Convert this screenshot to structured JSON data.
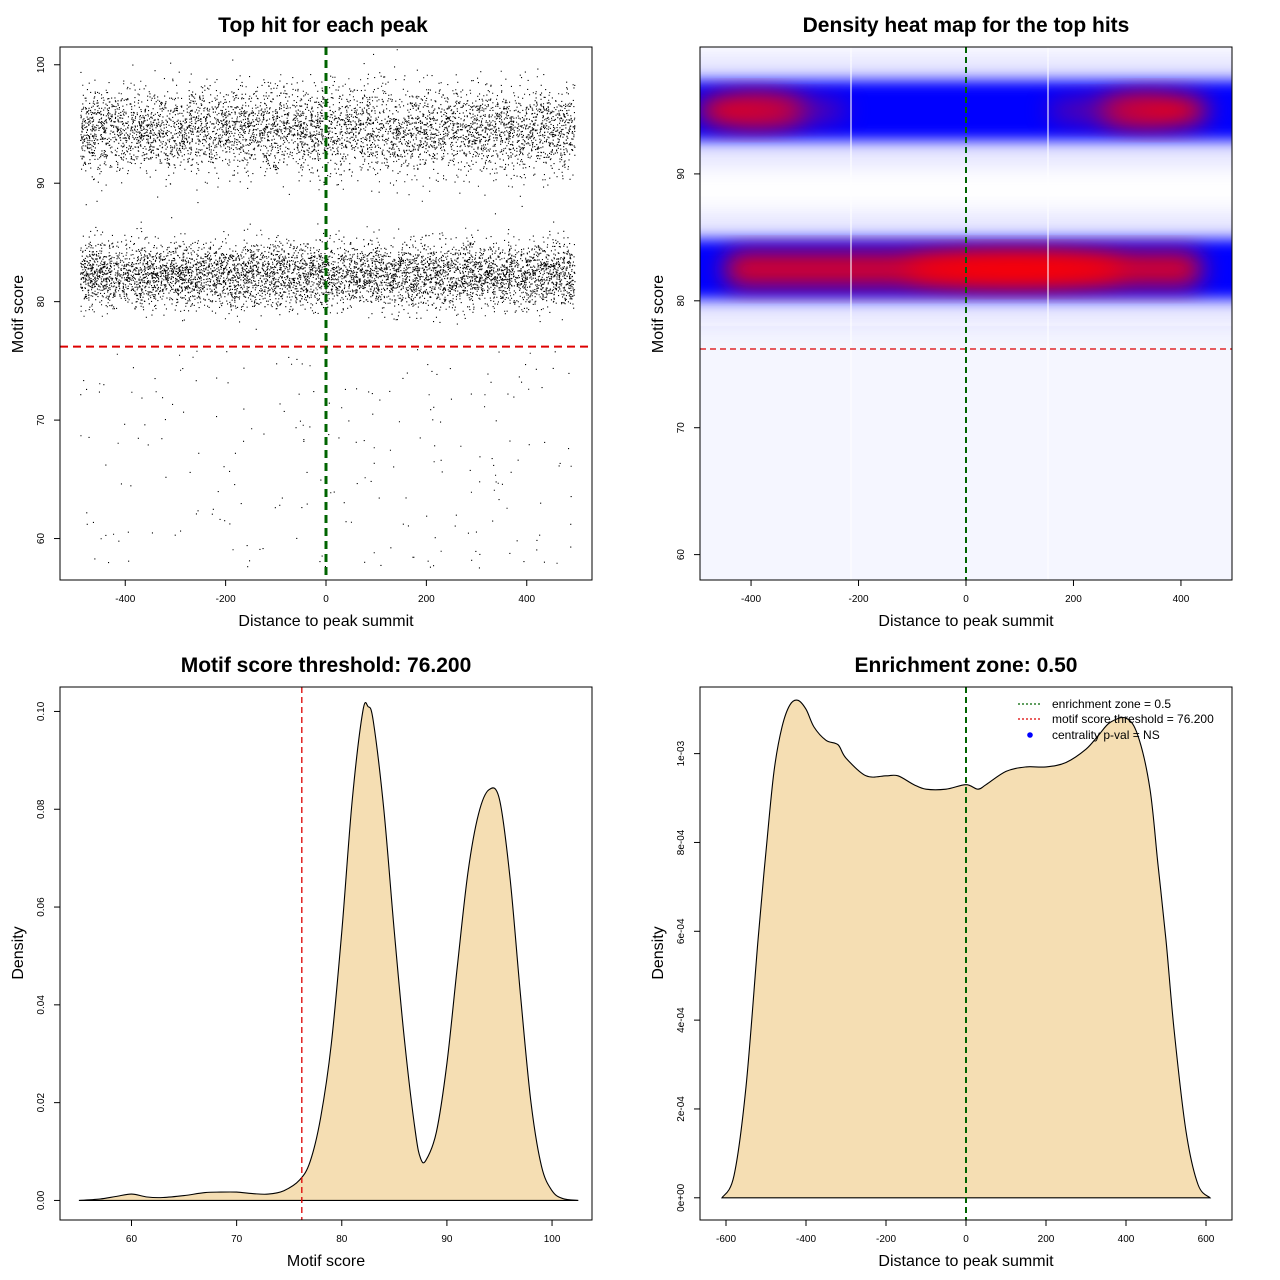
{
  "chart_data": [
    {
      "id": "scatter",
      "type": "scatter",
      "title": "Top hit for each peak",
      "xlabel": "Distance to peak summit",
      "ylabel": "Motif score",
      "xlim": [
        -530,
        530
      ],
      "ylim": [
        56.5,
        101.5
      ],
      "xticks": [
        -400,
        -200,
        0,
        200,
        400
      ],
      "yticks": [
        60,
        70,
        80,
        90,
        100
      ],
      "xtick_labels": [
        "-400",
        "-200",
        "0",
        "200",
        "400"
      ],
      "ytick_labels": [
        "60",
        "70",
        "80",
        "90",
        "100"
      ],
      "vline": {
        "x": 0,
        "color": "#006400",
        "style": "dashed"
      },
      "hline": {
        "y": 76.2,
        "color": "#dd0000",
        "style": "dashed"
      },
      "point_color": "#000000",
      "clusters": [
        {
          "y_center": 94.5,
          "y_spread": 2.4,
          "x_range": [
            -490,
            495
          ],
          "approx_points": 5200
        },
        {
          "y_center": 82.3,
          "y_spread": 1.8,
          "x_range": [
            -490,
            495
          ],
          "approx_points": 6000
        },
        {
          "y_range": [
            57.5,
            76
          ],
          "x_range": [
            -490,
            495
          ],
          "approx_points": 230
        }
      ],
      "grid": false
    },
    {
      "id": "heatmap",
      "type": "heatmap",
      "title": "Density heat map for the top hits",
      "xlabel": "Distance to peak summit",
      "ylabel": "Motif score",
      "xlim": [
        -495,
        495
      ],
      "ylim": [
        58,
        100
      ],
      "xticks": [
        -400,
        -200,
        0,
        200,
        400
      ],
      "yticks": [
        60,
        70,
        80,
        90
      ],
      "xtick_labels": [
        "-400",
        "-200",
        "0",
        "200",
        "400"
      ],
      "ytick_labels": [
        "60",
        "70",
        "80",
        "90"
      ],
      "vline": {
        "x": 0,
        "color": "#006400",
        "style": "dashed"
      },
      "hline": {
        "y": 76.2,
        "color": "#dd0000",
        "style": "dashed"
      },
      "band_peaks": [
        {
          "y": 95,
          "x_high_density": [
            -400,
            350
          ]
        },
        {
          "y": 82.5,
          "x_high_density": [
            0,
            200
          ]
        }
      ],
      "palette": [
        "#ffffff",
        "#0000ff",
        "#ff0000"
      ],
      "grid": false
    },
    {
      "id": "score_density",
      "type": "area",
      "title": "Motif score threshold: 76.200",
      "xlabel": "Motif score",
      "ylabel": "Density",
      "xlim": [
        53.2,
        103.8
      ],
      "ylim": [
        -0.004,
        0.105
      ],
      "xticks": [
        60,
        70,
        80,
        90,
        100
      ],
      "yticks": [
        0,
        0.02,
        0.04,
        0.06,
        0.08,
        0.1
      ],
      "xtick_labels": [
        "60",
        "70",
        "80",
        "90",
        "100"
      ],
      "ytick_labels": [
        "0.00",
        "0.02",
        "0.04",
        "0.06",
        "0.08",
        "0.10"
      ],
      "x": [
        55,
        57,
        58.5,
        60,
        61.5,
        63,
        65,
        67,
        68.5,
        70,
        71.5,
        73,
        74.5,
        76,
        77,
        78,
        79,
        80,
        81,
        82,
        82.5,
        83,
        84,
        85,
        86,
        87,
        87.5,
        88,
        89,
        90,
        91,
        92,
        93,
        94,
        95,
        96,
        97,
        98,
        99,
        100,
        101,
        102.5
      ],
      "y": [
        0.0,
        0.0003,
        0.0008,
        0.0013,
        0.0007,
        0.0006,
        0.001,
        0.0016,
        0.0017,
        0.0017,
        0.0014,
        0.0013,
        0.002,
        0.0042,
        0.008,
        0.017,
        0.032,
        0.055,
        0.082,
        0.1,
        0.101,
        0.098,
        0.08,
        0.055,
        0.032,
        0.014,
        0.0086,
        0.0082,
        0.014,
        0.028,
        0.048,
        0.067,
        0.079,
        0.084,
        0.082,
        0.066,
        0.042,
        0.02,
        0.007,
        0.002,
        0.0004,
        0.0
      ],
      "fill_color": "#f5deb3",
      "vline": {
        "x": 76.2,
        "color": "#dd0000",
        "style": "dashed"
      },
      "grid": false
    },
    {
      "id": "distance_density",
      "type": "area",
      "title": "Enrichment zone: 0.50",
      "xlabel": "Distance to peak summit",
      "ylabel": "Density",
      "xlim": [
        -665,
        665
      ],
      "ylim": [
        -5e-05,
        0.00115
      ],
      "xticks": [
        -600,
        -400,
        -200,
        0,
        200,
        400,
        600
      ],
      "yticks": [
        0,
        0.0002,
        0.0004,
        0.0006,
        0.0008,
        0.001
      ],
      "xtick_labels": [
        "-600",
        "-400",
        "-200",
        "0",
        "200",
        "400",
        "600"
      ],
      "ytick_labels": [
        "0e+00",
        "2e-04",
        "4e-04",
        "6e-04",
        "8e-04",
        "1e-03"
      ],
      "x": [
        -610,
        -580,
        -550,
        -520,
        -500,
        -480,
        -460,
        -440,
        -420,
        -400,
        -380,
        -350,
        -320,
        -300,
        -250,
        -200,
        -170,
        -130,
        -100,
        -50,
        0,
        30,
        50,
        100,
        150,
        200,
        250,
        300,
        330,
        360,
        400,
        430,
        460,
        480,
        500,
        520,
        550,
        580,
        610
      ],
      "y": [
        0.0,
        5e-05,
        0.00025,
        0.00058,
        0.00078,
        0.00096,
        0.00106,
        0.00111,
        0.00112,
        0.0011,
        0.00106,
        0.00103,
        0.00102,
        0.00099,
        0.00095,
        0.00095,
        0.00095,
        0.00093,
        0.00092,
        0.00092,
        0.00093,
        0.00092,
        0.00093,
        0.00096,
        0.00097,
        0.00097,
        0.00098,
        0.00101,
        0.00104,
        0.00107,
        0.00108,
        0.00104,
        0.00092,
        0.00075,
        0.00058,
        0.00038,
        0.00015,
        3e-05,
        0.0
      ],
      "fill_color": "#f5deb3",
      "vline": {
        "x": 0,
        "color": "#006400",
        "style": "dashed"
      },
      "legend": {
        "position": "top-right",
        "entries": [
          {
            "label": "enrichment zone = 0.5",
            "color": "#006400",
            "marker": "dotted-line"
          },
          {
            "label": "motif score threshold = 76.200",
            "color": "#dd0000",
            "marker": "dotted-line"
          },
          {
            "label": "centrality p-val = NS",
            "color": "#0000ff",
            "marker": "dot"
          }
        ]
      },
      "grid": false
    }
  ]
}
